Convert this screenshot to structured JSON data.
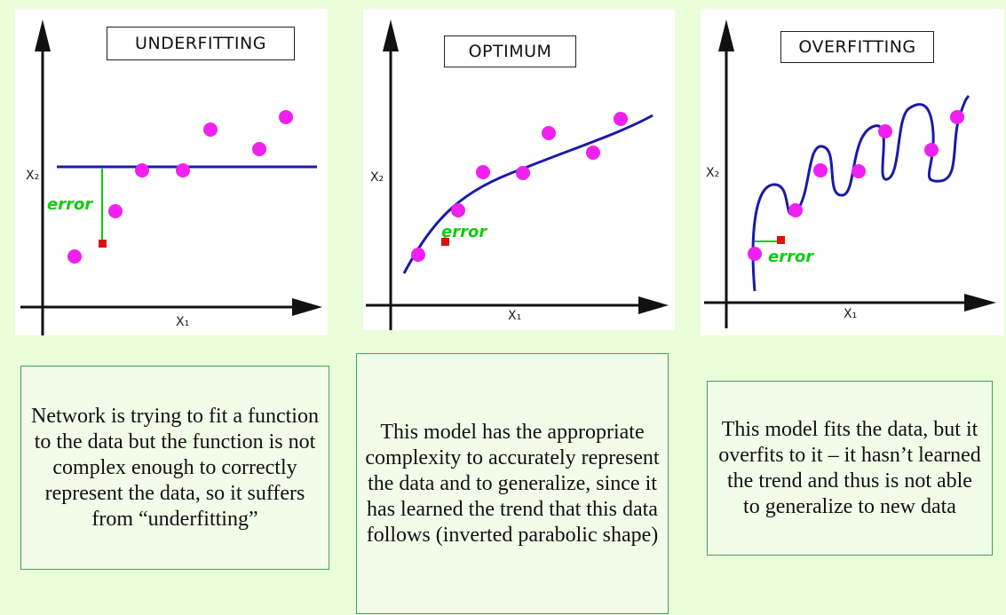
{
  "panels": [
    {
      "title": "UNDERFITTING",
      "x_label": "X₁",
      "y_label": "X₂",
      "error_label": "error"
    },
    {
      "title": "OPTIMUM",
      "x_label": "X₁",
      "y_label": "X₂",
      "error_label": "error"
    },
    {
      "title": "OVERFITTING",
      "x_label": "X₁",
      "y_label": "X₂",
      "error_label": "error"
    }
  ],
  "captions": [
    "Network is trying to fit a function to the data but the function is not complex enough to correctly represent the data, so it suffers from “underfitting”",
    "This model has the appropriate complexity to accurately represent the data and to generalize, since it has learned the trend that this data follows (inverted parabolic shape)",
    "This model fits the data, but it overfits to it – it hasn’t learned the trend and thus is not able to generalize to new data"
  ],
  "colors": {
    "background": "#eafed9",
    "data_point": "#f020f0",
    "fit_line": "#1a1aa8",
    "error_marker": "#e01010",
    "error_text": "#10cc10",
    "caption_border": "#3ea35e"
  }
}
